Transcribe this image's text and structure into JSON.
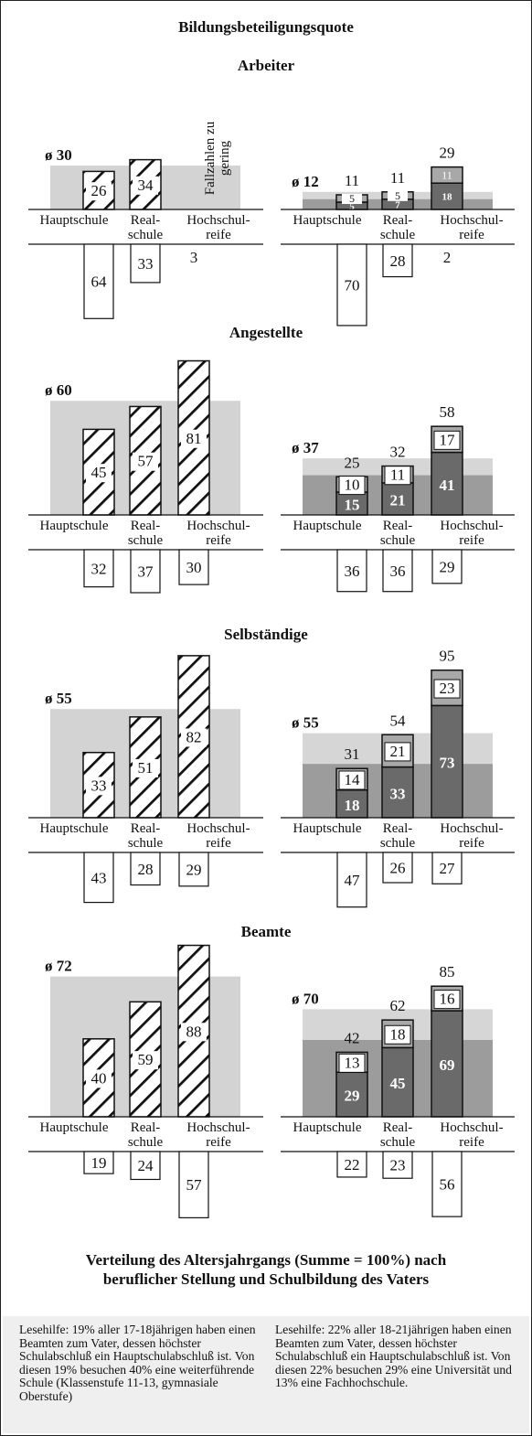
{
  "title": "Bildungsbeteiligungsquote",
  "caption": "Verteilung des Altersjahrgangs (Summe = 100%) nach beruflicher Stellung und Schulbildung des Vaters",
  "colors": {
    "hatch": "#111111",
    "avg_band_left": "#d3d3d3",
    "avg_light": "#d6d6d6",
    "avg_dark": "#9c9c9c",
    "fh_segment": "#a8a8a8",
    "uni_segment": "#6a6a6a",
    "box_border": "#111111"
  },
  "chart_data": {
    "type": "bar",
    "categories": [
      "Hauptschule",
      "Real-schule",
      "Hochschul-reife"
    ],
    "category_labels": [
      [
        "Hauptschule"
      ],
      [
        "Real-",
        "schule"
      ],
      [
        "Hochschul-",
        "reife"
      ]
    ],
    "panels": [
      {
        "group": "Arbeiter",
        "left": {
          "average_label": "ø 30",
          "average": 30,
          "values": [
            26,
            34,
            null
          ],
          "no_data_note": [
            "Fallzahlen zu",
            "gering"
          ],
          "distribution": [
            64,
            33,
            3
          ]
        },
        "right": {
          "average_label": "ø 12",
          "average": 12,
          "average_uni": 7,
          "totals": [
            11,
            11,
            29
          ],
          "universitaet": [
            5,
            7,
            18
          ],
          "fachhochschule": [
            5,
            5,
            11
          ],
          "distribution": [
            70,
            28,
            2
          ]
        }
      },
      {
        "group": "Angestellte",
        "left": {
          "average_label": "ø 60",
          "average": 60,
          "values": [
            45,
            57,
            81
          ],
          "distribution": [
            32,
            37,
            30
          ]
        },
        "right": {
          "average_label": "ø 37",
          "average": 37,
          "average_uni": 26,
          "totals": [
            25,
            32,
            58
          ],
          "universitaet": [
            15,
            21,
            41
          ],
          "fachhochschule": [
            10,
            11,
            17
          ],
          "distribution": [
            36,
            36,
            29
          ]
        }
      },
      {
        "group": "Selbständige",
        "left": {
          "average_label": "ø 55",
          "average": 55,
          "values": [
            33,
            51,
            82
          ],
          "distribution": [
            43,
            28,
            29
          ]
        },
        "right": {
          "average_label": "ø 55",
          "average": 55,
          "average_uni": 35,
          "totals": [
            31,
            54,
            95
          ],
          "universitaet": [
            18,
            33,
            73
          ],
          "fachhochschule": [
            14,
            21,
            23
          ],
          "distribution": [
            47,
            26,
            27
          ]
        }
      },
      {
        "group": "Beamte",
        "left": {
          "average_label": "ø 72",
          "average": 72,
          "values": [
            40,
            59,
            88
          ],
          "distribution": [
            19,
            24,
            57
          ]
        },
        "right": {
          "average_label": "ø 70",
          "average": 70,
          "average_uni": 50,
          "totals": [
            42,
            62,
            85
          ],
          "universitaet": [
            29,
            45,
            69
          ],
          "fachhochschule": [
            13,
            18,
            16
          ],
          "distribution": [
            22,
            23,
            56
          ]
        }
      }
    ]
  },
  "notes": {
    "left": "Lesehilfe: 19% aller 17-18jährigen haben einen Beamten zum Vater, dessen höchster Schulabschluß ein Hauptschulabschluß ist. Von diesen 19% besuchen 40% eine weiterführende Schule (Klassenstufe 11-13, gymnasiale Oberstufe)",
    "right": "Lesehilfe: 22% aller 18-21jährigen haben einen Beamten zum Vater, dessen höchster Schulabschluß ein Hauptschulabschluß ist. Von diesen 22% besuchen 29% eine Universität und 13% eine Fachhochschule."
  }
}
